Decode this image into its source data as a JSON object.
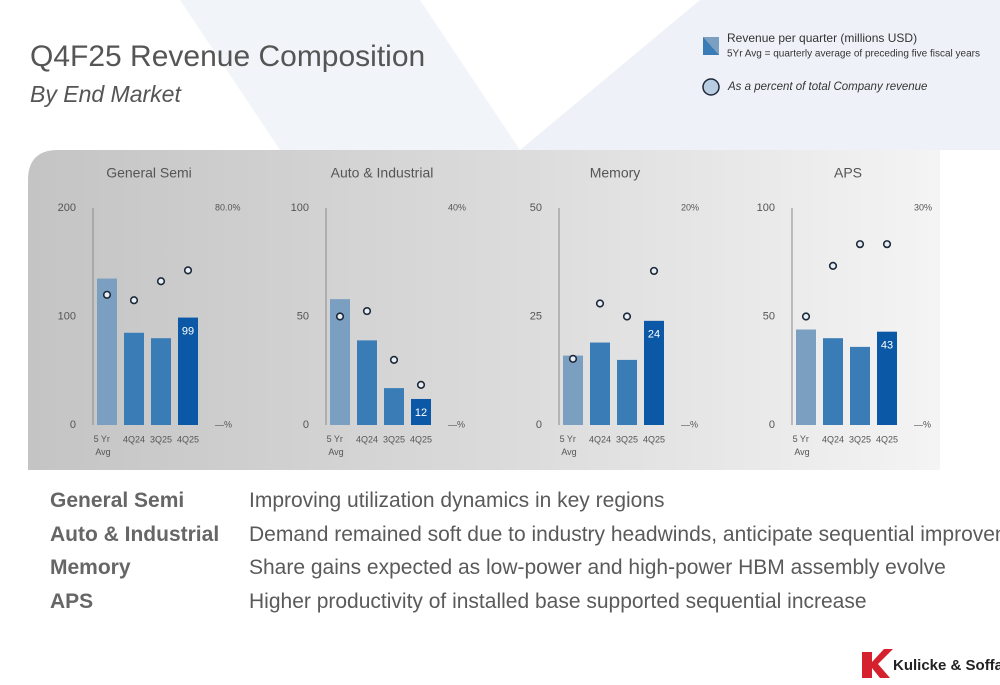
{
  "title": "Q4F25 Revenue Composition",
  "subtitle": "By End Market",
  "legend": {
    "bars": "Revenue per quarter (millions USD)",
    "bars_note": "5Yr Avg = quarterly average of preceding five fiscal years",
    "dots": "As a percent of total Company revenue"
  },
  "chart_data": [
    {
      "type": "bar",
      "title": "General Semi",
      "categories": [
        "5 Yr Avg",
        "4Q24",
        "3Q25",
        "4Q25"
      ],
      "series": [
        {
          "kind": "bar",
          "colors": [
            "#7b9fc1",
            "#3a7cb5",
            "#3a7cb5",
            "#0b58a6"
          ],
          "values": [
            135,
            85,
            80,
            99
          ]
        },
        {
          "kind": "dot",
          "axis": "y2",
          "color": "#1d2838",
          "values": [
            48,
            46,
            53,
            57
          ]
        }
      ],
      "label_last": true,
      "ylim": [
        0,
        200
      ],
      "yticks": [
        0,
        100,
        200
      ],
      "y2lim": [
        0,
        80
      ],
      "y2ticks": [
        {
          "value": 0,
          "label": "—%"
        },
        {
          "value": 80,
          "label": "80.0%"
        }
      ]
    },
    {
      "type": "bar",
      "title": "Auto & Industrial",
      "categories": [
        "5 Yr Avg",
        "4Q24",
        "3Q25",
        "4Q25"
      ],
      "series": [
        {
          "kind": "bar",
          "colors": [
            "#7b9fc1",
            "#3a7cb5",
            "#3a7cb5",
            "#0b58a6"
          ],
          "values": [
            58,
            39,
            17,
            12
          ]
        },
        {
          "kind": "dot",
          "axis": "y2",
          "color": "#1d2838",
          "values": [
            20,
            21,
            12,
            7.4
          ]
        }
      ],
      "label_last": true,
      "ylim": [
        0,
        100
      ],
      "yticks": [
        0,
        50,
        100
      ],
      "y2lim": [
        0,
        40
      ],
      "y2ticks": [
        {
          "value": 0,
          "label": "—%"
        },
        {
          "value": 40,
          "label": "40%"
        }
      ]
    },
    {
      "type": "bar",
      "title": "Memory",
      "categories": [
        "5 Yr Avg",
        "4Q24",
        "3Q25",
        "4Q25"
      ],
      "series": [
        {
          "kind": "bar",
          "colors": [
            "#7b9fc1",
            "#3a7cb5",
            "#3a7cb5",
            "#0b58a6"
          ],
          "values": [
            16,
            19,
            15,
            24
          ]
        },
        {
          "kind": "dot",
          "axis": "y2",
          "color": "#1d2838",
          "values": [
            6.1,
            11.2,
            10,
            14.2
          ]
        }
      ],
      "label_last": true,
      "ylim": [
        0,
        50
      ],
      "yticks": [
        0,
        25,
        50
      ],
      "y2lim": [
        0,
        20
      ],
      "y2ticks": [
        {
          "value": 0,
          "label": "—%"
        },
        {
          "value": 20,
          "label": "20%"
        }
      ]
    },
    {
      "type": "bar",
      "title": "APS",
      "categories": [
        "5 Yr Avg",
        "4Q24",
        "3Q25",
        "4Q25"
      ],
      "series": [
        {
          "kind": "bar",
          "colors": [
            "#7b9fc1",
            "#3a7cb5",
            "#3a7cb5",
            "#0b58a6"
          ],
          "values": [
            44,
            40,
            36,
            43
          ]
        },
        {
          "kind": "dot",
          "axis": "y2",
          "color": "#1d2838",
          "values": [
            15,
            22,
            25,
            25
          ]
        }
      ],
      "label_last": true,
      "ylim": [
        0,
        100
      ],
      "yticks": [
        0,
        50,
        100
      ],
      "y2lim": [
        0,
        30
      ],
      "y2ticks": [
        {
          "value": 0,
          "label": "—%"
        },
        {
          "value": 30,
          "label": "30%"
        }
      ]
    }
  ],
  "table": {
    "rows": [
      [
        "General Semi",
        "Improving utilization dynamics in key regions"
      ],
      [
        "Auto & Industrial",
        "Demand remained soft due to industry headwinds, anticipate sequential improvement"
      ],
      [
        "Memory",
        "Share gains expected as low-power and high-power HBM assembly evolve"
      ],
      [
        "APS",
        "Higher productivity of installed base supported sequential increase"
      ]
    ]
  },
  "logo": "Kulicke & Soffa."
}
